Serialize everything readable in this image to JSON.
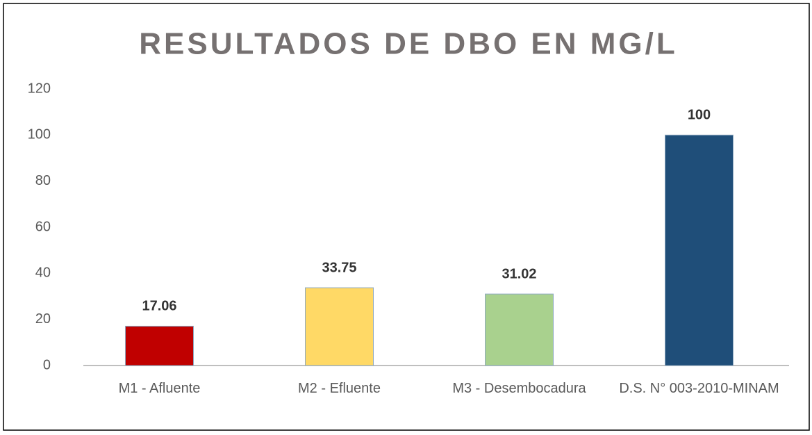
{
  "chart_data": {
    "type": "bar",
    "title": "RESULTADOS DE DBO EN MG/L",
    "categories": [
      "M1 - Afluente",
      "M2 - Efluente",
      "M3 - Desembocadura",
      "D.S. N° 003-2010-MINAM"
    ],
    "values": [
      17.06,
      33.75,
      31.02,
      100
    ],
    "colors": [
      "#c00000",
      "#ffd966",
      "#a9d18e",
      "#1f4e79"
    ],
    "ylim": [
      0,
      120
    ],
    "yticks": [
      0,
      20,
      40,
      60,
      80,
      100,
      120
    ],
    "grid": false
  }
}
